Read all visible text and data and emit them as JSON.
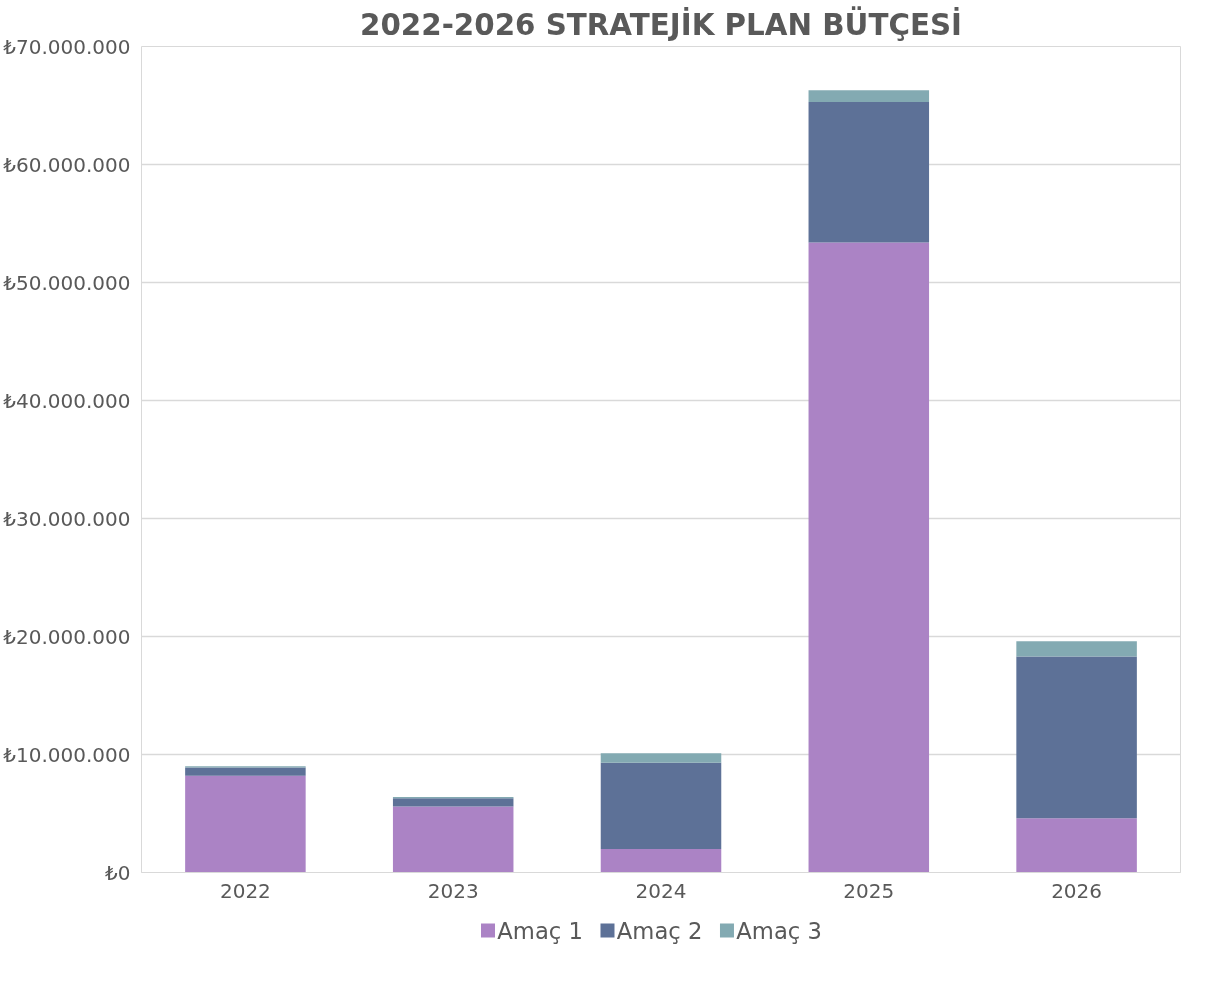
{
  "chart_data": {
    "type": "bar",
    "stacked": true,
    "title": "2022-2026 STRATEJİK PLAN BÜTÇESİ",
    "categories": [
      "2022",
      "2023",
      "2024",
      "2025",
      "2026"
    ],
    "series": [
      {
        "name": "Amaç 1",
        "color": "#ab83c5",
        "values": [
          8200000,
          5600000,
          2000000,
          53400000,
          4600000
        ]
      },
      {
        "name": "Amaç 2",
        "color": "#5d7197",
        "values": [
          700000,
          700000,
          7300000,
          11900000,
          13700000
        ]
      },
      {
        "name": "Amaç 3",
        "color": "#83aab2",
        "values": [
          100000,
          100000,
          800000,
          1000000,
          1300000
        ]
      }
    ],
    "ylim": [
      0,
      70000000
    ],
    "yticks": [
      {
        "value": 0,
        "label": "₺0"
      },
      {
        "value": 10000000,
        "label": "₺10.000.000"
      },
      {
        "value": 20000000,
        "label": "₺20.000.000"
      },
      {
        "value": 30000000,
        "label": "₺30.000.000"
      },
      {
        "value": 40000000,
        "label": "₺40.000.000"
      },
      {
        "value": 50000000,
        "label": "₺50.000.000"
      },
      {
        "value": 60000000,
        "label": "₺60.000.000"
      },
      {
        "value": 70000000,
        "label": "₺70.000.000"
      }
    ],
    "grid": "y",
    "legend": "bottom"
  }
}
